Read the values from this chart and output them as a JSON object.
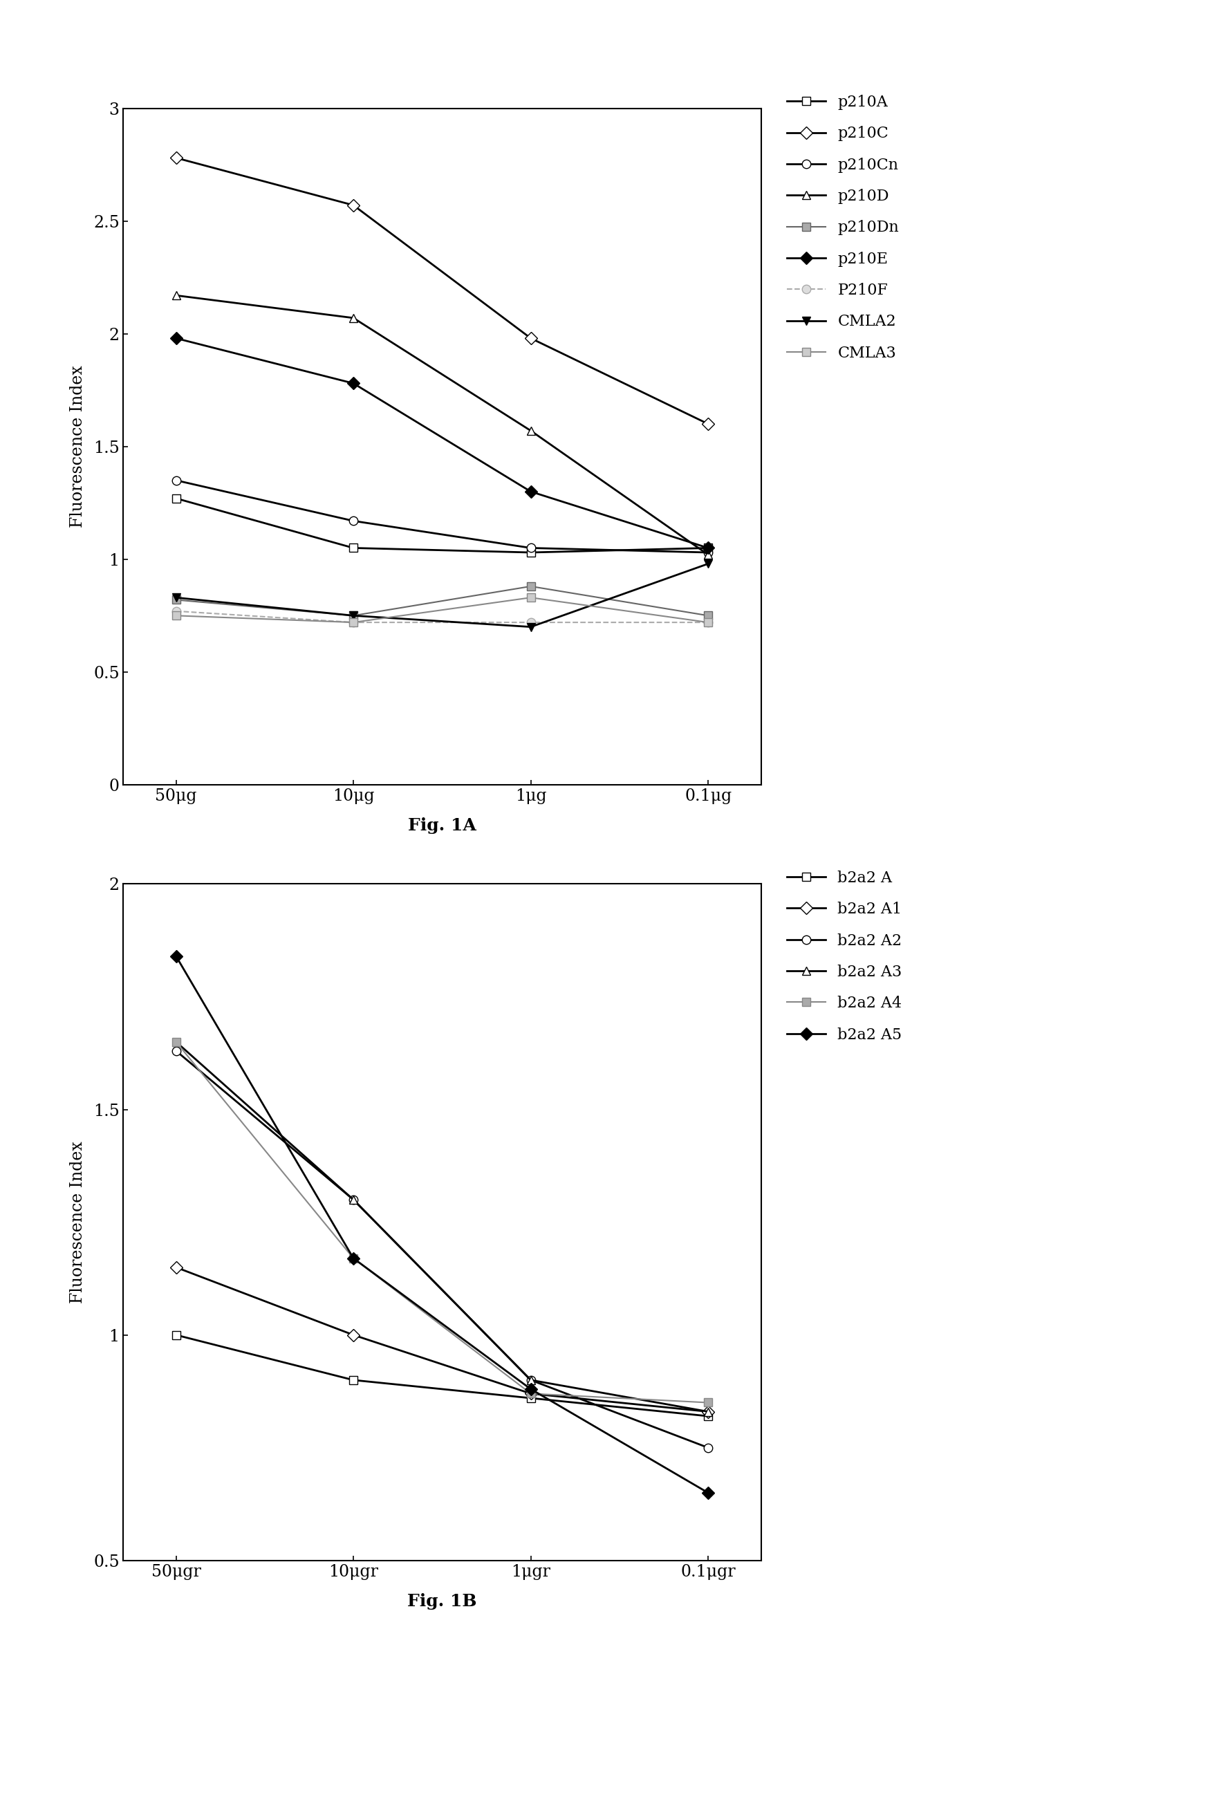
{
  "fig1a": {
    "x_labels": [
      "50μg",
      "10μg",
      "1μg",
      "0.1μg"
    ],
    "x_positions": [
      0,
      1,
      2,
      3
    ],
    "ylabel": "Fluorescence Index",
    "ylim": [
      0,
      3.0
    ],
    "yticks": [
      0,
      0.5,
      1.0,
      1.5,
      2.0,
      2.5,
      3.0
    ],
    "title": "Fig. 1A",
    "series": [
      {
        "label": "p210A",
        "values": [
          1.27,
          1.05,
          1.03,
          1.05
        ],
        "color": "#000000",
        "marker": "s",
        "marker_facecolor": "white",
        "linewidth": 2.0,
        "linestyle": "-"
      },
      {
        "label": "p210C",
        "values": [
          2.78,
          2.57,
          1.98,
          1.6
        ],
        "color": "#000000",
        "marker": "D",
        "marker_facecolor": "white",
        "linewidth": 2.0,
        "linestyle": "-"
      },
      {
        "label": "p210Cn",
        "values": [
          1.35,
          1.17,
          1.05,
          1.03
        ],
        "color": "#000000",
        "marker": "o",
        "marker_facecolor": "white",
        "linewidth": 2.0,
        "linestyle": "-"
      },
      {
        "label": "p210D",
        "values": [
          2.17,
          2.07,
          1.57,
          1.02
        ],
        "color": "#000000",
        "marker": "^",
        "marker_facecolor": "white",
        "linewidth": 2.0,
        "linestyle": "-"
      },
      {
        "label": "p210Dn",
        "values": [
          0.82,
          0.75,
          0.88,
          0.75
        ],
        "color": "#666666",
        "marker": "s",
        "marker_facecolor": "#aaaaaa",
        "linewidth": 1.5,
        "linestyle": "-"
      },
      {
        "label": "p210E",
        "values": [
          1.98,
          1.78,
          1.3,
          1.05
        ],
        "color": "#000000",
        "marker": "D",
        "marker_facecolor": "#000000",
        "linewidth": 2.0,
        "linestyle": "-"
      },
      {
        "label": "P210F",
        "values": [
          0.77,
          0.72,
          0.72,
          0.72
        ],
        "color": "#aaaaaa",
        "marker": "o",
        "marker_facecolor": "#dddddd",
        "linewidth": 1.5,
        "linestyle": "--"
      },
      {
        "label": "CMLA2",
        "values": [
          0.83,
          0.75,
          0.7,
          0.98
        ],
        "color": "#000000",
        "marker": "v",
        "marker_facecolor": "#000000",
        "linewidth": 2.0,
        "linestyle": "-"
      },
      {
        "label": "CMLA3",
        "values": [
          0.75,
          0.72,
          0.83,
          0.72
        ],
        "color": "#888888",
        "marker": "s",
        "marker_facecolor": "#cccccc",
        "linewidth": 1.5,
        "linestyle": "-"
      }
    ]
  },
  "fig1b": {
    "x_labels": [
      "50μgr",
      "10μgr",
      "1μgr",
      "0.1μgr"
    ],
    "x_positions": [
      0,
      1,
      2,
      3
    ],
    "ylabel": "Fluorescence Index",
    "ylim": [
      0.5,
      2.0
    ],
    "yticks": [
      0.5,
      1.0,
      1.5,
      2.0
    ],
    "title": "Fig. 1B",
    "series": [
      {
        "label": "b2a2 A",
        "values": [
          1.0,
          0.9,
          0.86,
          0.82
        ],
        "color": "#000000",
        "marker": "s",
        "marker_facecolor": "white",
        "linewidth": 2.0,
        "linestyle": "-"
      },
      {
        "label": "b2a2 A1",
        "values": [
          1.15,
          1.0,
          0.87,
          0.83
        ],
        "color": "#000000",
        "marker": "D",
        "marker_facecolor": "white",
        "linewidth": 2.0,
        "linestyle": "-"
      },
      {
        "label": "b2a2 A2",
        "values": [
          1.63,
          1.3,
          0.9,
          0.75
        ],
        "color": "#000000",
        "marker": "o",
        "marker_facecolor": "white",
        "linewidth": 2.0,
        "linestyle": "-"
      },
      {
        "label": "b2a2 A3",
        "values": [
          1.65,
          1.3,
          0.9,
          0.83
        ],
        "color": "#000000",
        "marker": "^",
        "marker_facecolor": "white",
        "linewidth": 2.0,
        "linestyle": "-"
      },
      {
        "label": "b2a2 A4",
        "values": [
          1.65,
          1.17,
          0.87,
          0.85
        ],
        "color": "#888888",
        "marker": "s",
        "marker_facecolor": "#aaaaaa",
        "linewidth": 1.5,
        "linestyle": "-"
      },
      {
        "label": "b2a2 A5",
        "values": [
          1.84,
          1.17,
          0.88,
          0.65
        ],
        "color": "#000000",
        "marker": "D",
        "marker_facecolor": "#000000",
        "linewidth": 2.0,
        "linestyle": "-"
      }
    ]
  },
  "background_color": "#ffffff",
  "font_family": "DejaVu Serif"
}
